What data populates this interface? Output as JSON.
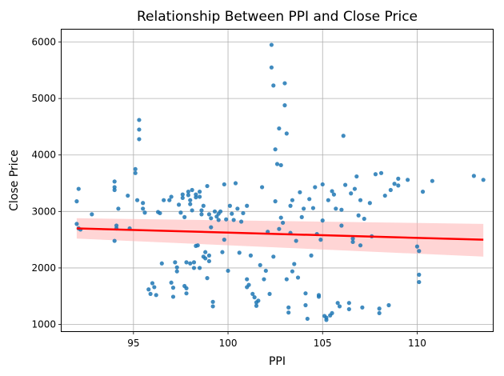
{
  "chart_data": {
    "type": "scatter",
    "title": "Relationship Between PPI and Close Price",
    "xlabel": "PPI",
    "ylabel": "Close Price",
    "xlim": [
      91.2,
      114.0
    ],
    "ylim": [
      880,
      6220
    ],
    "xticks": [
      95,
      100,
      105,
      110
    ],
    "yticks": [
      1000,
      2000,
      3000,
      4000,
      5000,
      6000
    ],
    "grid": true,
    "colors": {
      "points": "#1f77b4",
      "regression": "#ff0000",
      "ci_band": "#ffb3b3"
    },
    "regression": {
      "x": [
        92.0,
        113.5
      ],
      "y": [
        2700,
        2500
      ],
      "ci_upper": [
        2880,
        2780
      ],
      "ci_lower": [
        2520,
        2200
      ]
    },
    "points": [
      [
        92.0,
        2780
      ],
      [
        92.0,
        3180
      ],
      [
        92.1,
        3400
      ],
      [
        92.1,
        2700
      ],
      [
        92.2,
        2680
      ],
      [
        92.8,
        2950
      ],
      [
        94.0,
        3530
      ],
      [
        94.0,
        3430
      ],
      [
        94.0,
        3380
      ],
      [
        94.0,
        2480
      ],
      [
        94.1,
        2700
      ],
      [
        94.1,
        2750
      ],
      [
        94.2,
        3050
      ],
      [
        94.7,
        3280
      ],
      [
        94.8,
        2700
      ],
      [
        95.1,
        3750
      ],
      [
        95.1,
        3680
      ],
      [
        95.2,
        3200
      ],
      [
        95.3,
        4620
      ],
      [
        95.3,
        4450
      ],
      [
        95.3,
        4280
      ],
      [
        95.5,
        3150
      ],
      [
        95.5,
        3050
      ],
      [
        95.6,
        2980
      ],
      [
        95.8,
        1620
      ],
      [
        95.9,
        1540
      ],
      [
        96.0,
        1730
      ],
      [
        96.1,
        1660
      ],
      [
        96.2,
        1520
      ],
      [
        96.3,
        2990
      ],
      [
        96.4,
        2970
      ],
      [
        96.5,
        2080
      ],
      [
        96.6,
        3200
      ],
      [
        96.9,
        3200
      ],
      [
        97.0,
        3260
      ],
      [
        97.0,
        1740
      ],
      [
        97.1,
        1650
      ],
      [
        97.1,
        1490
      ],
      [
        97.2,
        2100
      ],
      [
        97.3,
        2010
      ],
      [
        97.3,
        1940
      ],
      [
        97.4,
        3120
      ],
      [
        97.5,
        2980
      ],
      [
        97.6,
        3300
      ],
      [
        97.6,
        3240
      ],
      [
        97.7,
        2900
      ],
      [
        97.7,
        1680
      ],
      [
        97.8,
        1640
      ],
      [
        97.8,
        1550
      ],
      [
        97.8,
        2100
      ],
      [
        97.9,
        3350
      ],
      [
        97.9,
        3290
      ],
      [
        98.0,
        3200
      ],
      [
        98.0,
        3130
      ],
      [
        98.0,
        2080
      ],
      [
        98.1,
        3380
      ],
      [
        98.1,
        3020
      ],
      [
        98.2,
        2100
      ],
      [
        98.2,
        2000
      ],
      [
        98.3,
        3250
      ],
      [
        98.3,
        3300
      ],
      [
        98.3,
        2390
      ],
      [
        98.4,
        2400
      ],
      [
        98.5,
        3350
      ],
      [
        98.5,
        3260
      ],
      [
        98.5,
        2000
      ],
      [
        98.6,
        3020
      ],
      [
        98.6,
        2950
      ],
      [
        98.7,
        3100
      ],
      [
        98.7,
        2200
      ],
      [
        98.8,
        2280
      ],
      [
        98.8,
        2170
      ],
      [
        98.9,
        3450
      ],
      [
        98.9,
        1820
      ],
      [
        99.0,
        2220
      ],
      [
        99.0,
        2120
      ],
      [
        99.0,
        2950
      ],
      [
        99.1,
        2880
      ],
      [
        99.1,
        2720
      ],
      [
        99.2,
        1400
      ],
      [
        99.2,
        1320
      ],
      [
        99.3,
        3000
      ],
      [
        99.4,
        2910
      ],
      [
        99.5,
        2960
      ],
      [
        99.5,
        2850
      ],
      [
        99.6,
        3000
      ],
      [
        99.7,
        2280
      ],
      [
        99.8,
        2500
      ],
      [
        99.8,
        3480
      ],
      [
        99.9,
        2860
      ],
      [
        100.0,
        1950
      ],
      [
        100.1,
        3100
      ],
      [
        100.2,
        2960
      ],
      [
        100.3,
        2850
      ],
      [
        100.4,
        3500
      ],
      [
        100.5,
        3050
      ],
      [
        100.6,
        2270
      ],
      [
        100.7,
        2820
      ],
      [
        100.8,
        2970
      ],
      [
        101.0,
        3100
      ],
      [
        101.0,
        1800
      ],
      [
        101.0,
        1660
      ],
      [
        101.1,
        1700
      ],
      [
        101.2,
        2220
      ],
      [
        101.3,
        1540
      ],
      [
        101.4,
        1480
      ],
      [
        101.5,
        1390
      ],
      [
        101.5,
        1330
      ],
      [
        101.6,
        1420
      ],
      [
        101.7,
        2050
      ],
      [
        101.8,
        3430
      ],
      [
        101.9,
        1800
      ],
      [
        102.0,
        1950
      ],
      [
        102.1,
        2640
      ],
      [
        102.2,
        1540
      ],
      [
        102.3,
        5950
      ],
      [
        102.3,
        5550
      ],
      [
        102.4,
        5230
      ],
      [
        102.4,
        2200
      ],
      [
        102.5,
        3180
      ],
      [
        102.5,
        4100
      ],
      [
        102.6,
        3840
      ],
      [
        102.7,
        4470
      ],
      [
        102.7,
        2690
      ],
      [
        102.8,
        2890
      ],
      [
        102.8,
        3820
      ],
      [
        102.9,
        2800
      ],
      [
        103.0,
        5270
      ],
      [
        103.0,
        4880
      ],
      [
        103.1,
        4380
      ],
      [
        103.1,
        1800
      ],
      [
        103.2,
        1300
      ],
      [
        103.2,
        1210
      ],
      [
        103.3,
        3100
      ],
      [
        103.3,
        2620
      ],
      [
        103.4,
        3200
      ],
      [
        103.4,
        1940
      ],
      [
        103.5,
        2070
      ],
      [
        103.6,
        2480
      ],
      [
        103.7,
        1830
      ],
      [
        103.8,
        3340
      ],
      [
        103.9,
        2900
      ],
      [
        104.0,
        3050
      ],
      [
        104.1,
        1550
      ],
      [
        104.1,
        1340
      ],
      [
        104.2,
        1100
      ],
      [
        104.3,
        3220
      ],
      [
        104.4,
        2220
      ],
      [
        104.5,
        3060
      ],
      [
        104.6,
        3430
      ],
      [
        104.7,
        2600
      ],
      [
        104.8,
        1520
      ],
      [
        104.8,
        1490
      ],
      [
        104.9,
        2500
      ],
      [
        105.0,
        3480
      ],
      [
        105.0,
        2840
      ],
      [
        105.1,
        1150
      ],
      [
        105.2,
        1080
      ],
      [
        105.2,
        1120
      ],
      [
        105.3,
        3200
      ],
      [
        105.4,
        1160
      ],
      [
        105.5,
        1200
      ],
      [
        105.5,
        3360
      ],
      [
        105.6,
        3300
      ],
      [
        105.7,
        3050
      ],
      [
        105.8,
        1380
      ],
      [
        105.9,
        1320
      ],
      [
        106.0,
        3030
      ],
      [
        106.0,
        2750
      ],
      [
        106.1,
        4340
      ],
      [
        106.2,
        3470
      ],
      [
        106.4,
        1270
      ],
      [
        106.4,
        1380
      ],
      [
        106.5,
        3320
      ],
      [
        106.6,
        2520
      ],
      [
        106.6,
        2460
      ],
      [
        106.7,
        3400
      ],
      [
        106.8,
        3620
      ],
      [
        106.9,
        2930
      ],
      [
        107.0,
        3200
      ],
      [
        107.0,
        2400
      ],
      [
        107.1,
        1300
      ],
      [
        107.2,
        2870
      ],
      [
        107.5,
        3150
      ],
      [
        107.6,
        2560
      ],
      [
        107.8,
        3660
      ],
      [
        108.0,
        1200
      ],
      [
        108.0,
        1280
      ],
      [
        108.1,
        3680
      ],
      [
        108.3,
        3280
      ],
      [
        108.5,
        1340
      ],
      [
        108.6,
        3380
      ],
      [
        108.8,
        3490
      ],
      [
        109.0,
        3580
      ],
      [
        109.0,
        3460
      ],
      [
        109.5,
        3560
      ],
      [
        110.0,
        2380
      ],
      [
        110.1,
        2300
      ],
      [
        110.1,
        1880
      ],
      [
        110.1,
        1750
      ],
      [
        110.3,
        3350
      ],
      [
        110.8,
        3540
      ],
      [
        113.0,
        3630
      ],
      [
        113.5,
        3560
      ]
    ]
  }
}
